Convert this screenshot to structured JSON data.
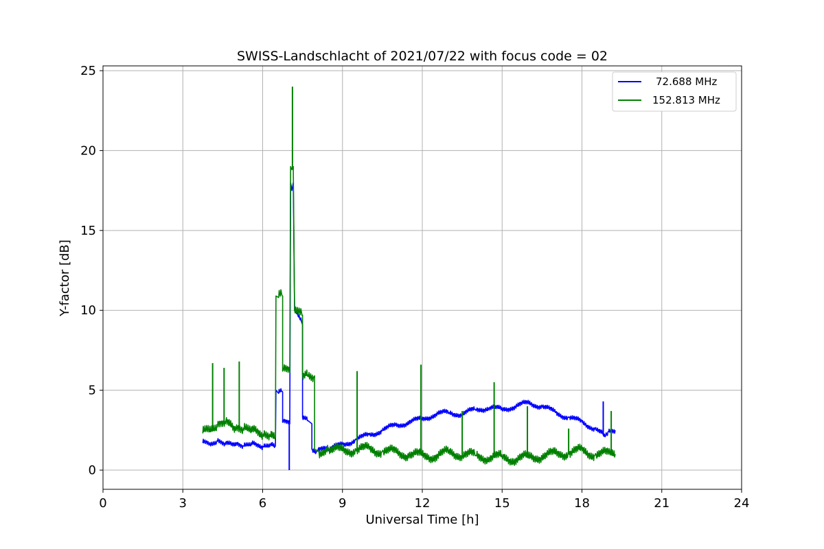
{
  "chart_data": {
    "type": "line",
    "title": "SWISS-Landschlacht of 2021/07/22 with focus code = 02",
    "xlabel": "Universal Time [h]",
    "ylabel": "Y-factor [dB]",
    "xlim": [
      0,
      24
    ],
    "ylim": [
      -1.2,
      25.3
    ],
    "xticks": [
      "0",
      "3",
      "6",
      "9",
      "12",
      "15",
      "18",
      "21",
      "24"
    ],
    "yticks": [
      "0",
      "5",
      "10",
      "15",
      "20",
      "25"
    ],
    "grid": true,
    "legend_position": "top-right",
    "series": [
      {
        "name": "72.688 MHz",
        "color": "#0000ff",
        "x": [
          3.75,
          4.0,
          4.3,
          4.6,
          5.0,
          5.3,
          5.6,
          6.0,
          6.3,
          6.48,
          6.5,
          6.6,
          6.75,
          6.75,
          7.02,
          7.05,
          7.1,
          7.15,
          7.2,
          7.5,
          7.5,
          7.7,
          7.85,
          7.85,
          8.05,
          8.5,
          9.0,
          9.5,
          10.0,
          10.5,
          11.0,
          11.5,
          12.0,
          12.5,
          13.0,
          13.5,
          14.0,
          14.5,
          15.0,
          15.5,
          16.0,
          16.5,
          17.0,
          17.5,
          18.0,
          18.5,
          18.8,
          19.0,
          19.25
        ],
        "y": [
          1.7,
          1.6,
          1.8,
          1.6,
          1.7,
          1.5,
          1.6,
          1.5,
          1.6,
          1.5,
          5.0,
          4.8,
          4.9,
          3.0,
          2.9,
          18.0,
          17.5,
          18.0,
          10.0,
          9.1,
          3.3,
          3.1,
          2.9,
          1.3,
          1.2,
          1.3,
          1.6,
          1.9,
          2.2,
          2.5,
          2.8,
          3.0,
          3.2,
          3.5,
          3.6,
          3.5,
          3.8,
          3.9,
          3.8,
          4.0,
          4.2,
          4.0,
          3.6,
          3.3,
          3.0,
          2.6,
          2.2,
          2.4,
          2.5
        ]
      },
      {
        "name": "152.813 MHz",
        "color": "#008000",
        "x": [
          3.75,
          4.0,
          4.3,
          4.6,
          5.0,
          5.3,
          5.6,
          6.0,
          6.3,
          6.48,
          6.5,
          6.6,
          6.75,
          6.75,
          7.02,
          7.05,
          7.1,
          7.15,
          7.2,
          7.5,
          7.5,
          7.7,
          7.95,
          7.95,
          8.1,
          8.5,
          9.0,
          9.5,
          10.0,
          10.5,
          11.0,
          11.5,
          12.0,
          12.5,
          13.0,
          13.5,
          14.0,
          14.5,
          15.0,
          15.5,
          16.0,
          16.5,
          17.0,
          17.5,
          18.0,
          18.5,
          19.0,
          19.25
        ],
        "y": [
          2.3,
          2.4,
          2.7,
          2.9,
          2.6,
          2.5,
          2.4,
          2.2,
          2.1,
          2.0,
          10.9,
          10.8,
          10.9,
          6.2,
          6.1,
          19.0,
          18.8,
          19.0,
          10.0,
          9.7,
          6.0,
          5.95,
          5.9,
          1.3,
          1.2,
          1.3,
          1.2,
          1.3,
          1.3,
          1.2,
          1.1,
          1.0,
          0.9,
          0.9,
          1.1,
          1.0,
          0.9,
          0.8,
          0.8,
          0.7,
          0.8,
          0.9,
          1.0,
          1.1,
          1.2,
          1.0,
          1.0,
          1.0
        ]
      }
    ],
    "spikes": [
      {
        "series": 1,
        "x": 4.12,
        "y": 6.7
      },
      {
        "series": 1,
        "x": 4.55,
        "y": 6.4
      },
      {
        "series": 1,
        "x": 5.12,
        "y": 6.8
      },
      {
        "series": 1,
        "x": 7.12,
        "y": 24.0
      },
      {
        "series": 1,
        "x": 9.55,
        "y": 6.2
      },
      {
        "series": 1,
        "x": 11.95,
        "y": 6.6
      },
      {
        "series": 1,
        "x": 13.5,
        "y": 3.7
      },
      {
        "series": 1,
        "x": 14.7,
        "y": 5.5
      },
      {
        "series": 1,
        "x": 15.95,
        "y": 4.0
      },
      {
        "series": 1,
        "x": 17.5,
        "y": 2.6
      },
      {
        "series": 1,
        "x": 19.1,
        "y": 3.7
      },
      {
        "series": 0,
        "x": 18.8,
        "y": 4.3
      },
      {
        "series": 0,
        "x": 7.0,
        "y": 0.0
      }
    ]
  }
}
